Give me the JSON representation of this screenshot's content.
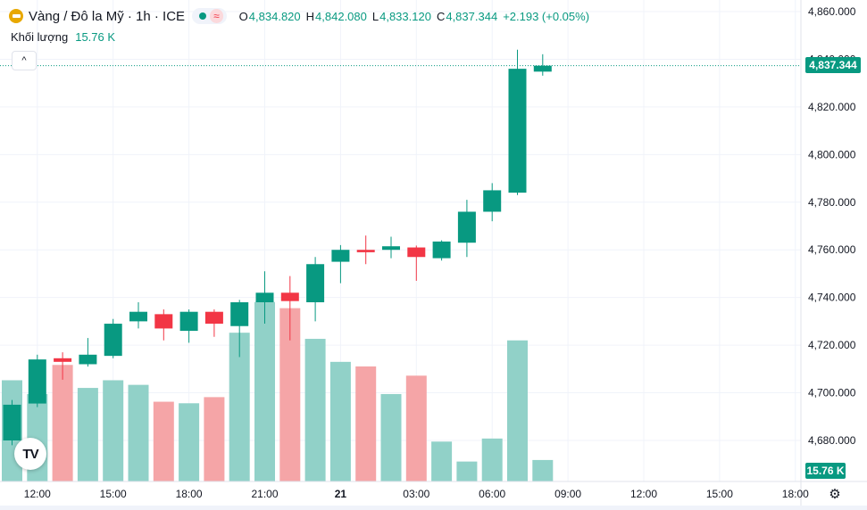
{
  "header": {
    "symbol_icon": "gold-bar-icon",
    "title": "Vàng / Đô la Mỹ · 1h · ICE",
    "status_dot": "market-open-icon",
    "wave_glyph": "≈",
    "ohlc": {
      "o_label": "O",
      "o_value": "4,834.820",
      "h_label": "H",
      "h_value": "4,842.080",
      "l_label": "L",
      "l_value": "4,833.120",
      "c_label": "C",
      "c_value": "4,837.344",
      "change": "+2.193 (+0.05%)"
    }
  },
  "volume_legend": {
    "label": "Khối lượng",
    "value": "15.76 K"
  },
  "collapse_glyph": "^",
  "logo_text": "TV",
  "settings_icon": "gear-icon",
  "badges": {
    "last_price": "4,837.344",
    "last_volume": "15.76 K"
  },
  "colors": {
    "up": "#089981",
    "down": "#f23645",
    "vol_up": "#91d1c8",
    "vol_down": "#f5a5a7",
    "grid": "#f0f3fa"
  },
  "chart_data": {
    "type": "candlestick",
    "title": "Vàng / Đô la Mỹ · 1h · ICE",
    "y_ticks": [
      4860,
      4840,
      4820,
      4800,
      4780,
      4760,
      4740,
      4720,
      4700,
      4680
    ],
    "y_tick_labels": [
      "4,860.000",
      "4,840.000",
      "4,820.000",
      "4,800.000",
      "4,780.000",
      "4,760.000",
      "4,740.000",
      "4,720.000",
      "4,700.000",
      "4,680.000"
    ],
    "ylim": [
      4662.0,
      4864.4
    ],
    "x_ticks": [
      {
        "slot": 1,
        "label": "12:00"
      },
      {
        "slot": 4,
        "label": "15:00"
      },
      {
        "slot": 7,
        "label": "18:00"
      },
      {
        "slot": 10,
        "label": "21:00"
      },
      {
        "slot": 13,
        "label": "21"
      },
      {
        "slot": 16,
        "label": "03:00"
      },
      {
        "slot": 19,
        "label": "06:00"
      },
      {
        "slot": 22,
        "label": "09:00"
      },
      {
        "slot": 25,
        "label": "12:00"
      },
      {
        "slot": 28,
        "label": "15:00"
      },
      {
        "slot": 31,
        "label": "18:00"
      }
    ],
    "slots_visible": 32,
    "candles": [
      {
        "slot": 0,
        "o": 4680.0,
        "h": 4697.0,
        "l": 4678.0,
        "c": 4695.0,
        "v": 66
      },
      {
        "slot": 1,
        "o": 4695.5,
        "h": 4716.0,
        "l": 4694.0,
        "c": 4714.0,
        "v": 57
      },
      {
        "slot": 2,
        "o": 4714.5,
        "h": 4717.0,
        "l": 4705.5,
        "c": 4713.0,
        "v": 76
      },
      {
        "slot": 3,
        "o": 4712.0,
        "h": 4723.0,
        "l": 4711.0,
        "c": 4716.0,
        "v": 61
      },
      {
        "slot": 4,
        "o": 4715.5,
        "h": 4731.0,
        "l": 4714.5,
        "c": 4729.0,
        "v": 66
      },
      {
        "slot": 5,
        "o": 4730.0,
        "h": 4738.0,
        "l": 4727.0,
        "c": 4734.0,
        "v": 63
      },
      {
        "slot": 6,
        "o": 4733.0,
        "h": 4735.0,
        "l": 4722.0,
        "c": 4727.0,
        "v": 52
      },
      {
        "slot": 7,
        "o": 4726.0,
        "h": 4735.0,
        "l": 4721.0,
        "c": 4734.0,
        "v": 51
      },
      {
        "slot": 8,
        "o": 4734.0,
        "h": 4735.0,
        "l": 4723.5,
        "c": 4729.0,
        "v": 55
      },
      {
        "slot": 9,
        "o": 4728.0,
        "h": 4739.0,
        "l": 4715.0,
        "c": 4738.0,
        "v": 97
      },
      {
        "slot": 10,
        "o": 4738.0,
        "h": 4751.0,
        "l": 4729.0,
        "c": 4742.0,
        "v": 117
      },
      {
        "slot": 11,
        "o": 4742.0,
        "h": 4749.0,
        "l": 4722.0,
        "c": 4738.5,
        "v": 113
      },
      {
        "slot": 12,
        "o": 4738.0,
        "h": 4757.0,
        "l": 4730.0,
        "c": 4754.0,
        "v": 93
      },
      {
        "slot": 13,
        "o": 4755.0,
        "h": 4762.0,
        "l": 4746.0,
        "c": 4760.0,
        "v": 78
      },
      {
        "slot": 14,
        "o": 4760.0,
        "h": 4766.0,
        "l": 4754.0,
        "c": 4759.0,
        "v": 75
      },
      {
        "slot": 15,
        "o": 4760.0,
        "h": 4765.5,
        "l": 4756.5,
        "c": 4761.5,
        "v": 57
      },
      {
        "slot": 16,
        "o": 4761.0,
        "h": 4761.8,
        "l": 4747.0,
        "c": 4757.0,
        "v": 69
      },
      {
        "slot": 17,
        "o": 4756.5,
        "h": 4764.0,
        "l": 4755.5,
        "c": 4763.5,
        "v": 26
      },
      {
        "slot": 18,
        "o": 4763.0,
        "h": 4781.0,
        "l": 4757.0,
        "c": 4776.0,
        "v": 13
      },
      {
        "slot": 19,
        "o": 4776.0,
        "h": 4788.0,
        "l": 4772.0,
        "c": 4785.0,
        "v": 28
      },
      {
        "slot": 20,
        "o": 4784.0,
        "h": 4844.0,
        "l": 4783.0,
        "c": 4836.0,
        "v": 92
      },
      {
        "slot": 21,
        "o": 4834.8,
        "h": 4842.1,
        "l": 4833.1,
        "c": 4837.3,
        "v": 14
      }
    ],
    "volume_ylim": [
      0,
      250
    ]
  }
}
